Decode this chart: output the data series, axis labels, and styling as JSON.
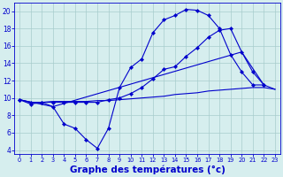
{
  "bg_color": "#d6eeee",
  "grid_color": "#a8cccc",
  "line_color": "#0000cc",
  "xlabel": "Graphe des températures (°c)",
  "xlabel_fontsize": 7.5,
  "ytick_vals": [
    4,
    6,
    8,
    10,
    12,
    14,
    16,
    18,
    20
  ],
  "xtick_vals": [
    0,
    1,
    2,
    3,
    4,
    5,
    6,
    7,
    8,
    9,
    10,
    11,
    12,
    13,
    14,
    15,
    16,
    17,
    18,
    19,
    20,
    21,
    22,
    23
  ],
  "xlim": [
    -0.5,
    23.5
  ],
  "ylim": [
    3.5,
    21.0
  ],
  "curve_dip": {
    "x": [
      0,
      1,
      2,
      3,
      4,
      5,
      6,
      7,
      8,
      9,
      10,
      11,
      12,
      13,
      14,
      15,
      16,
      17,
      18,
      19,
      20,
      21,
      22
    ],
    "y": [
      9.8,
      9.3,
      9.5,
      9.0,
      7.0,
      6.5,
      5.2,
      4.2,
      6.5,
      11.2,
      13.5,
      14.5,
      17.5,
      19.0,
      19.5,
      20.2,
      20.1,
      19.5,
      18.0,
      15.0,
      13.0,
      11.5,
      11.5
    ]
  },
  "curve_flat": {
    "x": [
      0,
      1,
      2,
      3,
      4,
      5,
      6,
      7,
      8,
      9,
      10,
      11,
      12,
      13,
      14,
      15,
      16,
      17,
      18,
      19,
      20,
      21,
      22,
      23
    ],
    "y": [
      9.8,
      9.5,
      9.5,
      9.6,
      9.6,
      9.6,
      9.6,
      9.7,
      9.7,
      9.8,
      9.9,
      10.0,
      10.1,
      10.2,
      10.4,
      10.5,
      10.6,
      10.8,
      10.9,
      11.0,
      11.1,
      11.2,
      11.2,
      11.0
    ]
  },
  "curve_mid": {
    "x": [
      0,
      1,
      2,
      3,
      4,
      5,
      6,
      7,
      8,
      9,
      10,
      11,
      12,
      13,
      14,
      15,
      16,
      17,
      18,
      19,
      20,
      21,
      22
    ],
    "y": [
      9.8,
      9.5,
      9.5,
      9.5,
      9.5,
      9.5,
      9.5,
      9.5,
      9.8,
      10.0,
      10.5,
      11.2,
      12.2,
      13.3,
      13.6,
      14.8,
      15.8,
      17.0,
      17.8,
      18.0,
      15.3,
      13.0,
      11.5
    ]
  },
  "curve_envelope": {
    "x": [
      0,
      3,
      20,
      22,
      23
    ],
    "y": [
      9.8,
      9.0,
      15.3,
      11.5,
      11.0
    ]
  }
}
